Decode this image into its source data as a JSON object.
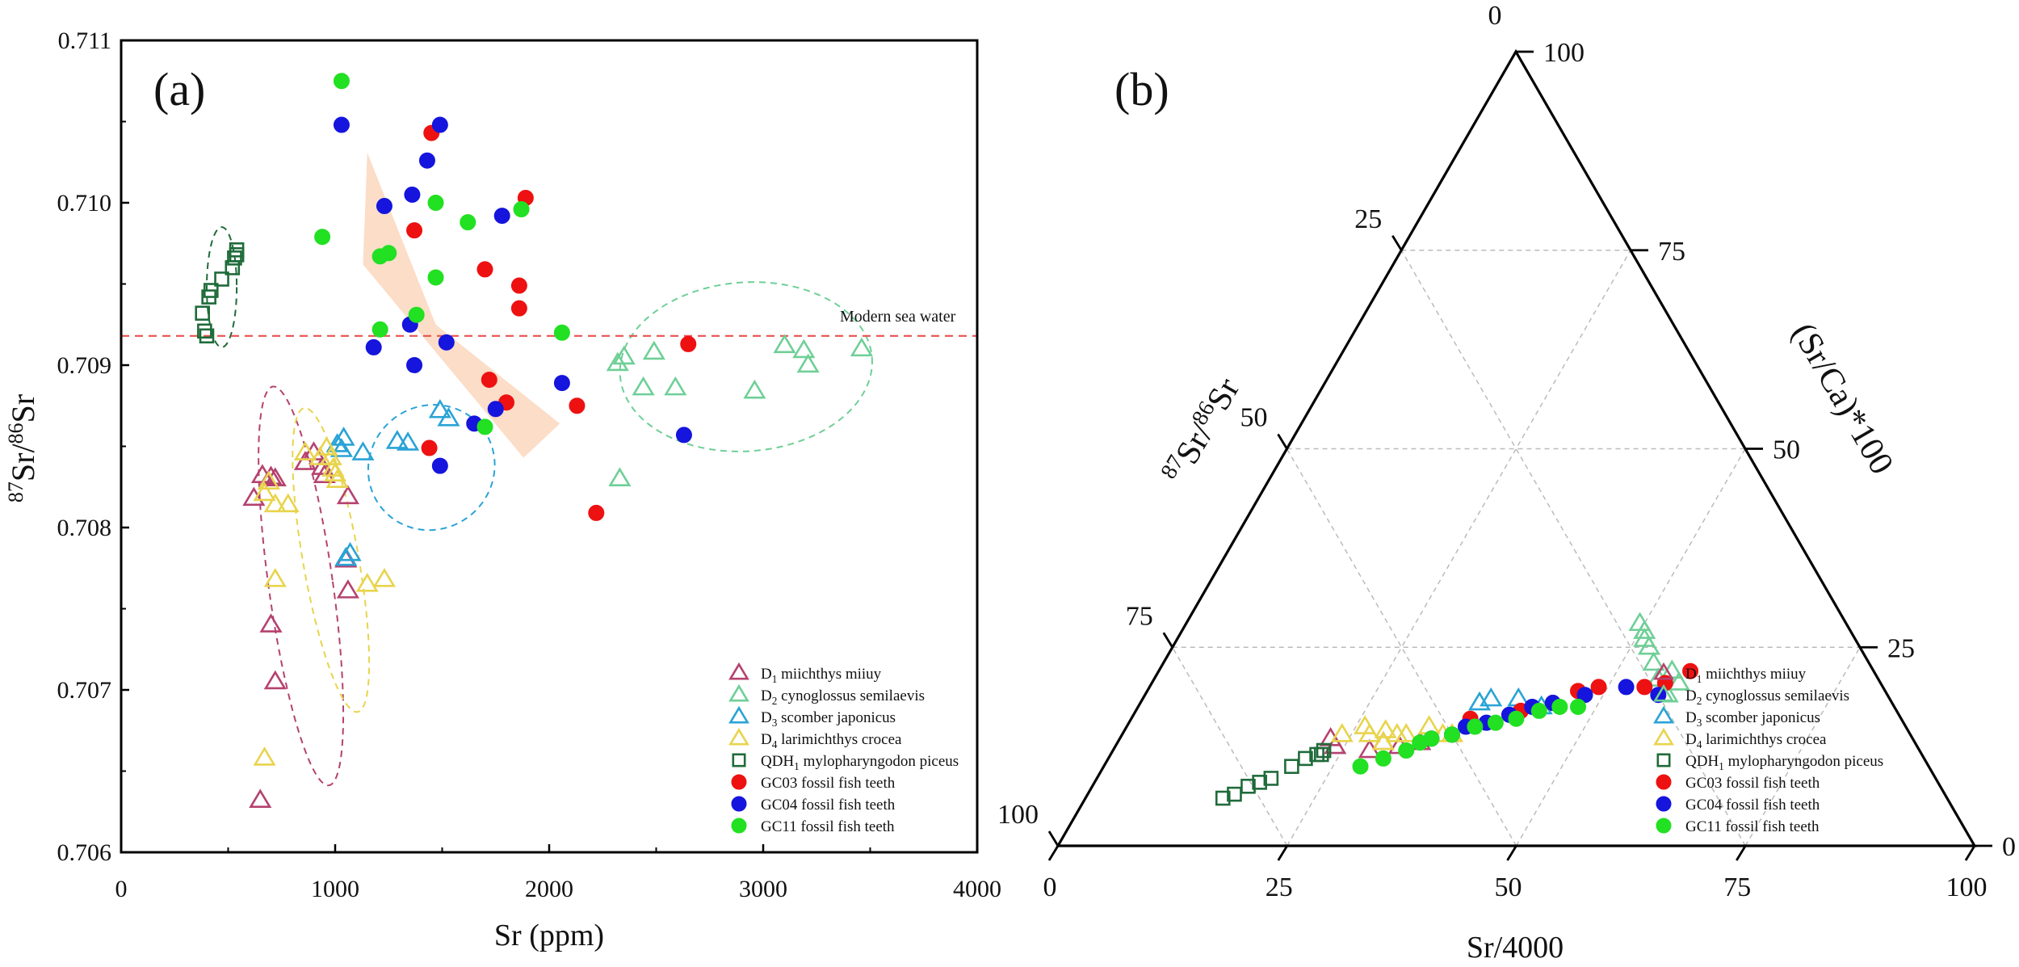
{
  "panel_labels": {
    "a": "(a)",
    "b": "(b)"
  },
  "legend_labels": {
    "D1": "D1 miichthys miiuy",
    "D2": "D2 cynoglossus semilaevis",
    "D3": "D3 scomber japonicus",
    "D4": "D4 larimichthys crocea",
    "QDH1": "QDH1 mylopharyngodon piceus",
    "GC03": "GC03 fossil fish teeth",
    "GC04": "GC04 fossil fish teeth",
    "GC11": "GC11 fossil fish teeth"
  },
  "colors": {
    "D1": "#b5426f",
    "D2": "#6fcf97",
    "D3": "#29a3d6",
    "D4": "#e8d44d",
    "QDH1": "#1f6b3a",
    "GC03": "#ee1111",
    "GC04": "#1515dd",
    "GC11": "#22e022",
    "seawater": "#e8524f",
    "arrow": "#fbd9c2"
  },
  "chart_data": [
    {
      "type": "scatter",
      "panel": "(a)",
      "xlabel": "Sr (ppm)",
      "ylabel": "87Sr/86Sr",
      "xlim": [
        0,
        4000
      ],
      "ylim": [
        0.706,
        0.711
      ],
      "x_ticks": [
        0,
        1000,
        2000,
        3000,
        4000
      ],
      "y_ticks": [
        0.706,
        0.707,
        0.708,
        0.709,
        0.71,
        0.711
      ],
      "y_tick_labels": [
        "0.706",
        "0.707",
        "0.708",
        "0.709",
        "0.710",
        "0.711"
      ],
      "annotations": [
        {
          "text": "Modern sea water",
          "y": 0.70918
        }
      ],
      "series": [
        {
          "name": "D1",
          "marker": "triangle",
          "x": [
            620,
            660,
            700,
            720,
            860,
            900,
            940,
            950,
            1060,
            1050,
            1060,
            700,
            720,
            650
          ],
          "y": [
            0.70818,
            0.70832,
            0.70831,
            0.7083,
            0.7084,
            0.70846,
            0.70837,
            0.70832,
            0.70819,
            0.7078,
            0.70761,
            0.7074,
            0.70705,
            0.70632
          ]
        },
        {
          "name": "D2",
          "marker": "triangle",
          "x": [
            2320,
            2350,
            2490,
            2590,
            2440,
            2330,
            2960,
            3100,
            3190,
            3210,
            3460
          ],
          "y": [
            0.70901,
            0.70905,
            0.70908,
            0.70886,
            0.70886,
            0.7083,
            0.70884,
            0.70912,
            0.70909,
            0.709,
            0.7091
          ]
        },
        {
          "name": "D3",
          "marker": "triangle",
          "x": [
            1010,
            1030,
            1040,
            1130,
            1290,
            1340,
            1490,
            1530,
            1050,
            1070
          ],
          "y": [
            0.70851,
            0.70848,
            0.70855,
            0.70846,
            0.70853,
            0.70852,
            0.70872,
            0.70867,
            0.70781,
            0.70784
          ]
        },
        {
          "name": "D4",
          "marker": "triangle",
          "x": [
            670,
            690,
            720,
            780,
            860,
            930,
            960,
            980,
            990,
            1000,
            1010,
            720,
            1150,
            1230,
            670
          ],
          "y": [
            0.70821,
            0.70828,
            0.70814,
            0.70814,
            0.70846,
            0.70843,
            0.70849,
            0.70843,
            0.70836,
            0.70833,
            0.70829,
            0.70768,
            0.70765,
            0.70768,
            0.70658
          ]
        },
        {
          "name": "QDH1",
          "marker": "square",
          "x": [
            380,
            390,
            400,
            410,
            420,
            470,
            520,
            530,
            540,
            540
          ],
          "y": [
            0.70932,
            0.70921,
            0.70918,
            0.70942,
            0.70946,
            0.70953,
            0.7096,
            0.70966,
            0.70968,
            0.70971
          ]
        },
        {
          "name": "GC03",
          "marker": "circle",
          "x": [
            1450,
            1370,
            1700,
            1890,
            1860,
            1860,
            1720,
            1800,
            1440,
            2130,
            2220,
            2650
          ],
          "y": [
            0.71043,
            0.70983,
            0.70959,
            0.71003,
            0.70949,
            0.70935,
            0.70891,
            0.70877,
            0.70849,
            0.70875,
            0.70809,
            0.70913
          ]
        },
        {
          "name": "GC04",
          "marker": "circle",
          "x": [
            1030,
            1490,
            1430,
            1360,
            1230,
            1780,
            1350,
            1520,
            1180,
            1370,
            1650,
            1750,
            1490,
            2060,
            2630
          ],
          "y": [
            0.71048,
            0.71048,
            0.71026,
            0.71005,
            0.70998,
            0.70992,
            0.70925,
            0.70914,
            0.70911,
            0.709,
            0.70864,
            0.70873,
            0.70838,
            0.70889,
            0.70857
          ]
        },
        {
          "name": "GC11",
          "marker": "circle",
          "x": [
            1030,
            940,
            1470,
            1620,
            1870,
            1210,
            1250,
            1470,
            1380,
            1210,
            2060,
            1700
          ],
          "y": [
            0.71075,
            0.70979,
            0.71,
            0.70988,
            0.70996,
            0.70967,
            0.70969,
            0.70954,
            0.70931,
            0.70922,
            0.7092,
            0.70862
          ]
        }
      ]
    },
    {
      "type": "ternary",
      "panel": "(b)",
      "axis_labels": {
        "bottom": "Sr/4000",
        "left": "87Sr/86Sr",
        "right": "(Sr/Ca)*100"
      },
      "ticks": [
        "0",
        "25",
        "50",
        "75",
        "100"
      ],
      "bottom_tick_labels": [
        "0",
        "25",
        "50",
        "75",
        "100"
      ],
      "right_tick_labels": [
        "0",
        "25",
        "50",
        "75",
        "100"
      ],
      "left_tick_labels": [
        "25",
        "50",
        "75",
        "100"
      ],
      "note": "points as [Sr/4000, (Sr/Ca)*100] percent",
      "series": [
        {
          "name": "D1",
          "marker": "triangle",
          "points": [
            [
              23,
              13.5
            ],
            [
              24,
              12.5
            ],
            [
              28,
              12
            ],
            [
              29,
              13
            ],
            [
              31,
              12.5
            ],
            [
              33,
              13
            ]
          ]
        },
        {
          "name": "D2",
          "marker": "triangle",
          "points": [
            [
              49.5,
              28
            ],
            [
              50.5,
              27
            ],
            [
              51,
              26
            ],
            [
              52,
              25
            ],
            [
              53.5,
              23
            ],
            [
              55,
              21
            ],
            [
              56,
              22
            ],
            [
              57.5,
              20.5
            ],
            [
              57,
              19
            ]
          ]
        },
        {
          "name": "D3",
          "marker": "triangle",
          "points": [
            [
              37,
              18
            ],
            [
              38,
              18.5
            ],
            [
              41,
              18.5
            ],
            [
              44,
              17.5
            ]
          ]
        },
        {
          "name": "D4",
          "marker": "triangle",
          "points": [
            [
              24,
              14
            ],
            [
              26,
              15
            ],
            [
              27,
              14
            ],
            [
              28.5,
              14.5
            ],
            [
              30,
              14
            ],
            [
              31,
              14
            ],
            [
              33,
              15
            ],
            [
              35,
              14
            ],
            [
              36,
              14
            ],
            [
              29,
              13
            ]
          ]
        },
        {
          "name": "QDH1",
          "marker": "square",
          "points": [
            [
              15,
              6
            ],
            [
              16,
              6.5
            ],
            [
              17,
              7.5
            ],
            [
              18,
              8
            ],
            [
              19,
              8.5
            ],
            [
              20.5,
              10
            ],
            [
              21.5,
              11
            ],
            [
              22.5,
              11.5
            ],
            [
              23,
              12
            ],
            [
              23,
              11.5
            ]
          ]
        },
        {
          "name": "GC03",
          "marker": "circle",
          "points": [
            [
              37,
              16
            ],
            [
              42,
              17
            ],
            [
              45,
              18
            ],
            [
              47,
              19.5
            ],
            [
              49,
              20
            ],
            [
              54,
              20
            ],
            [
              56,
              20.5
            ],
            [
              58,
              22
            ]
          ]
        },
        {
          "name": "GC04",
          "marker": "circle",
          "points": [
            [
              34,
              13.5
            ],
            [
              36,
              14
            ],
            [
              37,
              15
            ],
            [
              39,
              15.5
            ],
            [
              41,
              16.5
            ],
            [
              43,
              17.5
            ],
            [
              45,
              18
            ],
            [
              48,
              19
            ],
            [
              52,
              20
            ],
            [
              56,
              19
            ]
          ]
        },
        {
          "name": "GC11",
          "marker": "circle",
          "points": [
            [
              28,
              10
            ],
            [
              30,
              11
            ],
            [
              32,
              12
            ],
            [
              33,
              13
            ],
            [
              34,
              13.5
            ],
            [
              36,
              14
            ],
            [
              38,
              15
            ],
            [
              40,
              15.5
            ],
            [
              42,
              16
            ],
            [
              44,
              17
            ],
            [
              46,
              17.5
            ],
            [
              48,
              17.5
            ]
          ]
        }
      ]
    }
  ]
}
